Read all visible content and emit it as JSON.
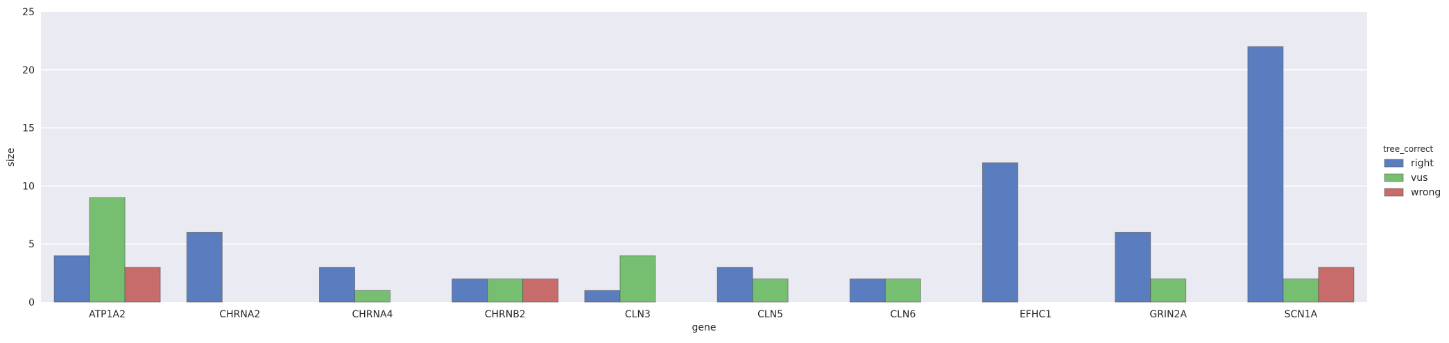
{
  "chart_data": {
    "type": "bar",
    "xlabel": "gene",
    "ylabel": "size",
    "ylim": [
      0,
      25
    ],
    "yticks": [
      "0",
      "5",
      "10",
      "15",
      "20",
      "25"
    ],
    "grid": true,
    "legend_placement": "right",
    "categories": [
      "ATP1A2",
      "CHRNA2",
      "CHRNA4",
      "CHRNB2",
      "CLN3",
      "CLN5",
      "CLN6",
      "EFHC1",
      "GRIN2A",
      "SCN1A"
    ],
    "legend": {
      "title": "tree_correct"
    },
    "series": [
      {
        "name": "right",
        "color": "#5a7dc0",
        "values": [
          4,
          6,
          3,
          2,
          1,
          3,
          2,
          12,
          6,
          22
        ]
      },
      {
        "name": "vus",
        "color": "#77bf70",
        "values": [
          9,
          null,
          1,
          2,
          4,
          2,
          2,
          null,
          2,
          2
        ]
      },
      {
        "name": "wrong",
        "color": "#c76b6b",
        "values": [
          3,
          null,
          null,
          2,
          null,
          null,
          null,
          null,
          null,
          3
        ]
      }
    ]
  }
}
